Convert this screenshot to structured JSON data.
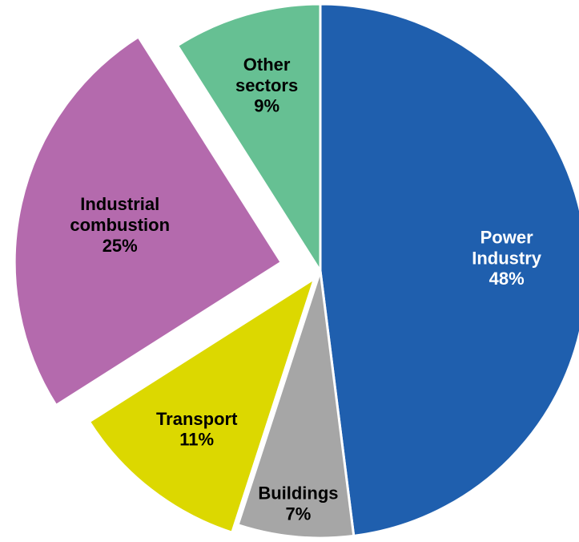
{
  "chart_data": {
    "type": "pie",
    "categories": [
      "Power Industry",
      "Buildings",
      "Transport",
      "Industrial combustion",
      "Other sectors"
    ],
    "values": [
      48,
      7,
      11,
      25,
      9
    ],
    "value_labels": [
      "48%",
      "7%",
      "11%",
      "25%",
      "9%"
    ],
    "colors": [
      "#1f5fae",
      "#a6a6a6",
      "#dcd800",
      "#b46aad",
      "#66c093"
    ]
  }
}
